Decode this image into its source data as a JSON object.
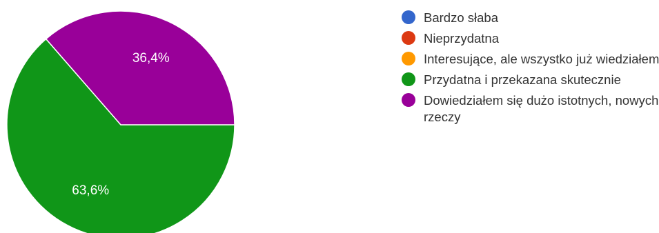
{
  "chart_data": {
    "type": "pie",
    "categories": [
      "Bardzo słaba",
      "Nieprzydatna",
      "Interesujące, ale wszystko już wiedziałem",
      "Przydatna i przekazana skutecznie",
      "Dowiedziałem się dużo istotnych, nowych rzeczy"
    ],
    "values": [
      0,
      0,
      0,
      63.6,
      36.4
    ],
    "value_labels": [
      "",
      "",
      "",
      "63,6%",
      "36,4%"
    ],
    "colors": [
      "#3366cc",
      "#dc3912",
      "#ff9900",
      "#109618",
      "#990099"
    ],
    "legend_position": "right"
  }
}
